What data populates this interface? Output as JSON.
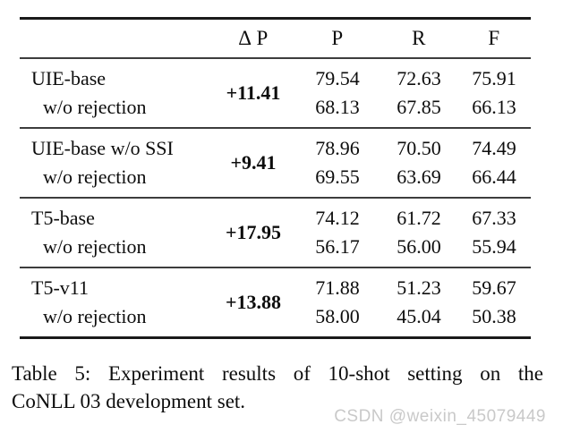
{
  "table": {
    "column_headers": [
      "Δ P",
      "P",
      "R",
      "F"
    ],
    "groups": [
      {
        "model": "UIE-base",
        "variant": "w/o rejection",
        "delta_p": "+11.41",
        "model_row": [
          "79.54",
          "72.63",
          "75.91"
        ],
        "variant_row": [
          "68.13",
          "67.85",
          "66.13"
        ]
      },
      {
        "model": "UIE-base w/o SSI",
        "variant": "w/o rejection",
        "delta_p": "+9.41",
        "model_row": [
          "78.96",
          "70.50",
          "74.49"
        ],
        "variant_row": [
          "69.55",
          "63.69",
          "66.44"
        ]
      },
      {
        "model": "T5-base",
        "variant": "w/o rejection",
        "delta_p": "+17.95",
        "model_row": [
          "74.12",
          "61.72",
          "67.33"
        ],
        "variant_row": [
          "56.17",
          "56.00",
          "55.94"
        ]
      },
      {
        "model": "T5-v11",
        "variant": "w/o rejection",
        "delta_p": "+13.88",
        "model_row": [
          "71.88",
          "51.23",
          "59.67"
        ],
        "variant_row": [
          "58.00",
          "45.04",
          "50.38"
        ]
      }
    ]
  },
  "caption": {
    "line1": "Table 5: Experiment results of 10-shot setting on the",
    "line2": "CoNLL 03 development set."
  },
  "watermark": "CSDN @weixin_45079449"
}
